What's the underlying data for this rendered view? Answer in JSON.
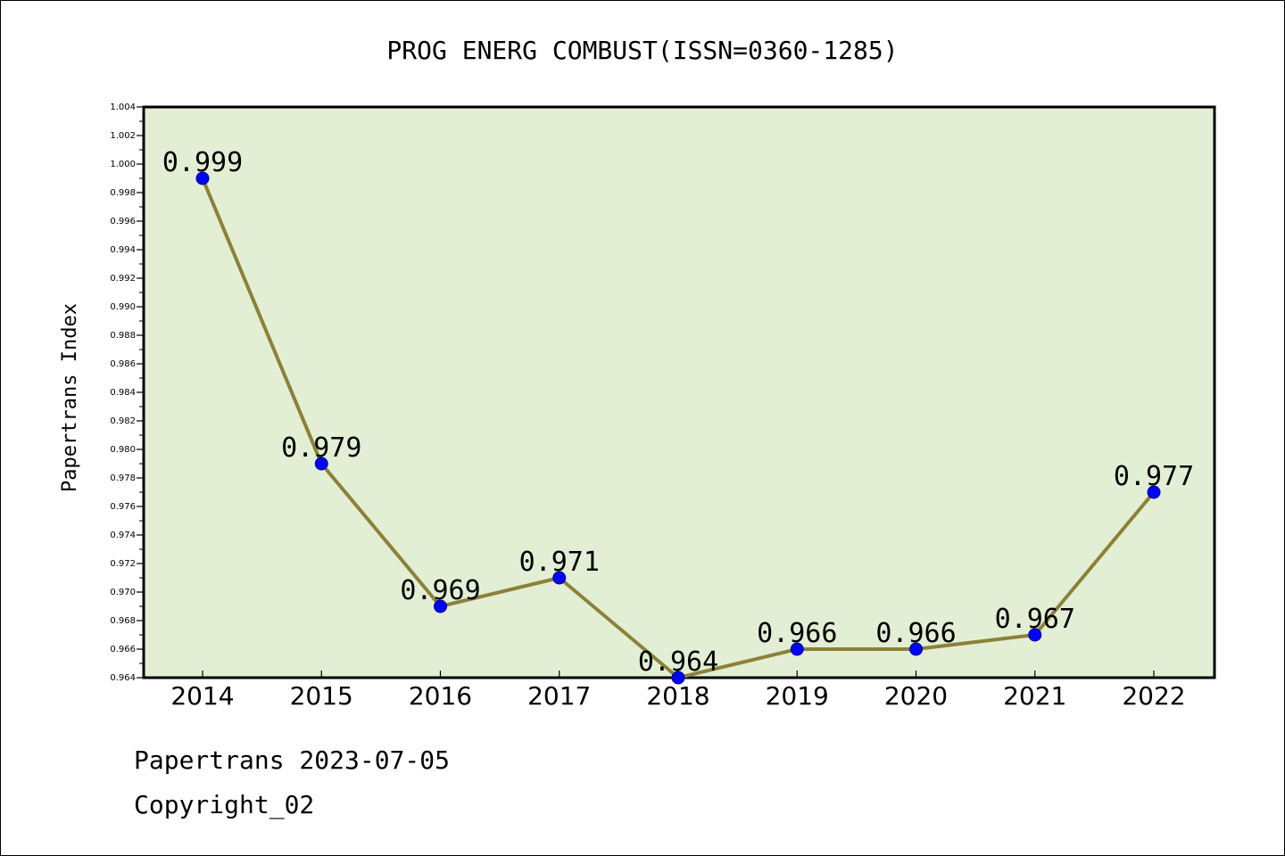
{
  "chart_data": {
    "type": "line",
    "title": "PROG ENERG COMBUST(ISSN=0360-1285)",
    "xlabel": "",
    "ylabel": "Papertrans Index",
    "categories": [
      "2014",
      "2015",
      "2016",
      "2017",
      "2018",
      "2019",
      "2020",
      "2021",
      "2022"
    ],
    "series": [
      {
        "values": [
          0.999,
          0.979,
          0.969,
          0.971,
          0.964,
          0.966,
          0.966,
          0.967,
          0.977
        ],
        "data_labels": [
          "0.999",
          "0.979",
          "0.969",
          "0.971",
          "0.964",
          "0.966",
          "0.966",
          "0.967",
          "0.977"
        ]
      }
    ],
    "ylim": [
      0.964,
      1.004
    ],
    "yticks": [
      "0.964",
      "0.966",
      "0.968",
      "0.970",
      "0.972",
      "0.974",
      "0.976",
      "0.978",
      "0.980",
      "0.982",
      "0.984",
      "0.986",
      "0.988",
      "0.990",
      "0.992",
      "0.994",
      "0.996",
      "0.998",
      "1.000",
      "1.002",
      "1.004"
    ],
    "grid": false,
    "colors": {
      "plot_background": "#e2efd5",
      "line": "#8c8138",
      "marker": "#0000ff"
    }
  },
  "footer": {
    "line1": "Papertrans 2023-07-05",
    "line2": "Copyright_02"
  }
}
